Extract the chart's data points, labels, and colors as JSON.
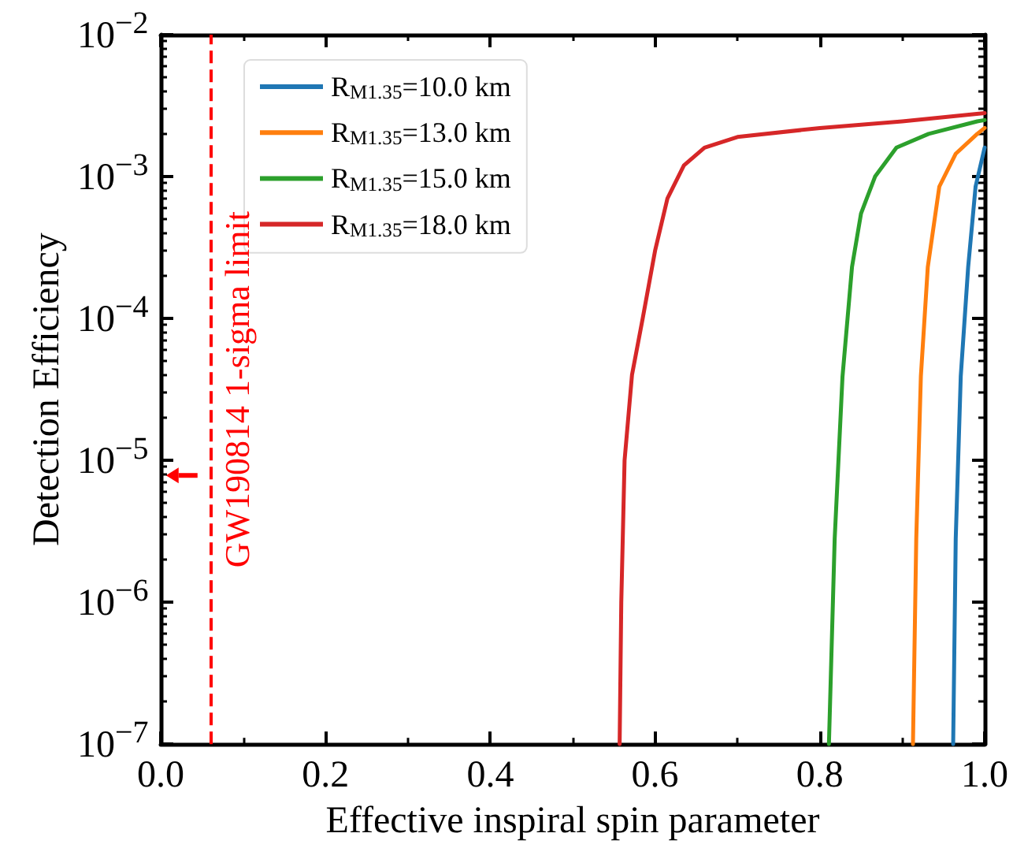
{
  "chart_data": {
    "type": "line",
    "xlabel": "Effective inspiral spin parameter",
    "ylabel": "Detection Efficiency",
    "log": "y",
    "grid": false,
    "legend": "top left",
    "marker": "none",
    "line_style": "solid",
    "xlim": [
      0,
      1
    ],
    "xticks": [
      {
        "value": 0,
        "label": "0.0"
      },
      {
        "value": 0.2,
        "label": "0.2"
      },
      {
        "value": 0.4,
        "label": "0.4"
      },
      {
        "value": 0.6,
        "label": "0.6"
      },
      {
        "value": 0.8,
        "label": "0.8"
      },
      {
        "value": 1,
        "label": "1.0"
      }
    ],
    "ylim": [
      1e-07,
      0.01
    ],
    "yticks": [
      {
        "value": 1e-07,
        "label": "10$^{−7}$"
      },
      {
        "value": 1e-06,
        "label": "10$^{−6}$"
      },
      {
        "value": 1e-05,
        "label": "10$^{−5}$"
      },
      {
        "value": 0.0001,
        "label": "10$^{−4}$"
      },
      {
        "value": 0.001,
        "label": "10$^{−3}$"
      },
      {
        "value": 0.01,
        "label": "10$^{−2}$"
      }
    ],
    "series": [
      {
        "name": "R$_{M}$$_{1.35}$=10.0 km",
        "color": "#1f77b4",
        "x": [
          0.9618,
          0.9649,
          0.971,
          0.98,
          0.989,
          1.0
        ],
        "values": [
          1e-07,
          2.8e-06,
          3.9e-05,
          0.00023,
          0.00085,
          0.0016
        ]
      },
      {
        "name": "R$_{M}$$_{1.35}$=13.0 km",
        "color": "#ff7f0e",
        "x": [
          0.913,
          0.917,
          0.9226,
          0.931,
          0.945,
          0.965,
          0.991,
          1.0
        ],
        "values": [
          1e-07,
          2.8e-06,
          3.9e-05,
          0.00023,
          0.00085,
          0.00145,
          0.002,
          0.0022
        ]
      },
      {
        "name": "R$_{M}$$_{1.35}$=15.0 km",
        "color": "#2ca02c",
        "x": [
          0.811,
          0.818,
          0.8275,
          0.839,
          0.85,
          0.867,
          0.893,
          0.932,
          0.991,
          1.0
        ],
        "values": [
          1e-07,
          2.8e-06,
          3.9e-05,
          0.00023,
          0.00055,
          0.001,
          0.0016,
          0.002,
          0.00245,
          0.0025
        ]
      },
      {
        "name": "R$_{M}$$_{1.35}$=18.0 km",
        "color": "#d62728",
        "x": [
          0.557,
          0.559,
          0.563,
          0.572,
          0.585,
          0.6,
          0.615,
          0.635,
          0.66,
          0.7,
          0.8,
          0.9,
          1.0
        ],
        "values": [
          1e-07,
          1e-06,
          1e-05,
          4e-05,
          0.0001,
          0.0003,
          0.0007,
          0.0012,
          0.0016,
          0.0019,
          0.0022,
          0.00245,
          0.0028
        ]
      }
    ],
    "ref_lines": [
      {
        "axis": "x",
        "value": 0.06,
        "label": "GW190814 1-sigma limit",
        "color": "#ff0000",
        "line_style": "dashed"
      }
    ]
  }
}
